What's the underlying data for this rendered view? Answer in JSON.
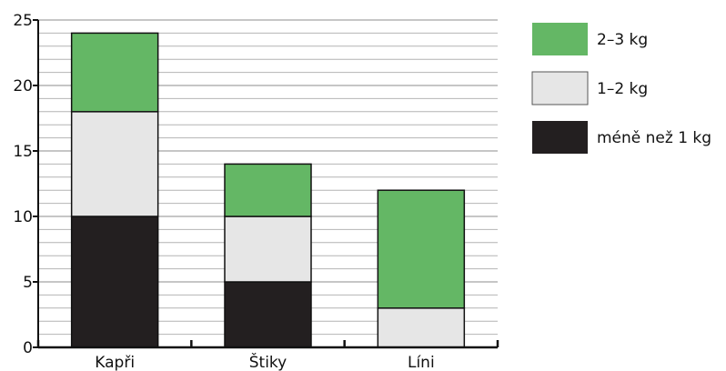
{
  "chart_data": {
    "type": "bar",
    "stacked": true,
    "categories": [
      "Kapři",
      "Štiky",
      "Líni"
    ],
    "series": [
      {
        "name": "méně než 1 kg",
        "values": [
          10,
          5,
          0
        ],
        "color": "#231f20"
      },
      {
        "name": "1–2 kg",
        "values": [
          8,
          5,
          3
        ],
        "color": "#e6e6e6"
      },
      {
        "name": "2–3 kg",
        "values": [
          6,
          4,
          9
        ],
        "color": "#64b765"
      }
    ],
    "yticks": [
      0,
      5,
      10,
      15,
      20,
      25
    ],
    "ylim": [
      0,
      25
    ],
    "minor_grid_step": 1,
    "grid": true,
    "legend_position": "right",
    "legend_order": [
      "2–3 kg",
      "1–2 kg",
      "méně než 1 kg"
    ],
    "title": "",
    "xlabel": "",
    "ylabel": ""
  }
}
